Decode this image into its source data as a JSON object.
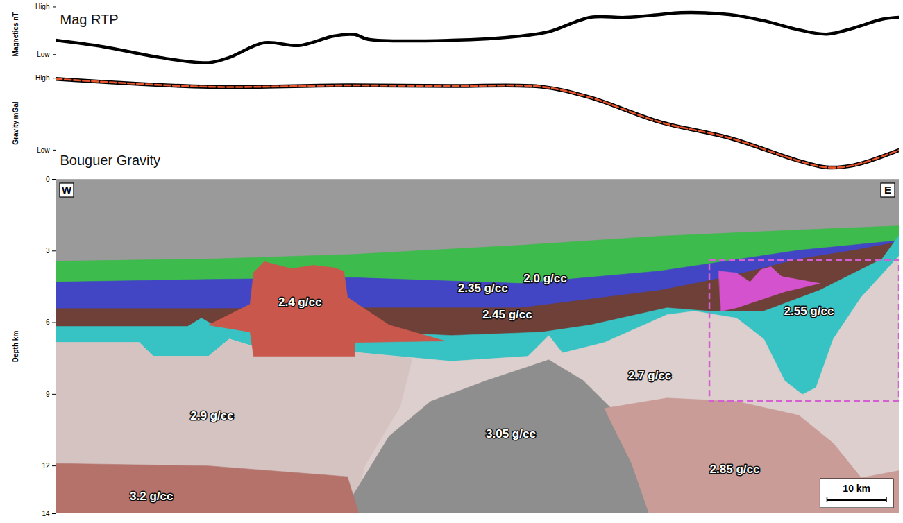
{
  "chart_data": [
    {
      "type": "line",
      "y_label": "Magnetics nT",
      "x": [
        0,
        8.2,
        17.5,
        25.7,
        29.2,
        35.1,
        40.9,
        46.8,
        50.3,
        52.6,
        66.6,
        78.3,
        83.0,
        90.0,
        95.9,
        101.7,
        105.2,
        113.4,
        119.2,
        125.1,
        129.8,
        134.4,
        139.1,
        142
      ],
      "series": [
        {
          "name": "Mag RTP",
          "color": "#000000",
          "line_style": "solid",
          "values": [
            0.3,
            0.16,
            -0.06,
            -0.17,
            -0.06,
            0.25,
            0.19,
            0.39,
            0.42,
            0.32,
            0.3,
            0.39,
            0.48,
            0.78,
            0.78,
            0.84,
            0.88,
            0.84,
            0.71,
            0.52,
            0.43,
            0.56,
            0.74,
            0.78
          ]
        }
      ],
      "xlim": [
        0,
        142
      ],
      "ylim": [
        -0.2,
        1.05
      ],
      "yticks": [
        {
          "value": 0,
          "label": "Low"
        },
        {
          "value": 1,
          "label": "High"
        }
      ],
      "tick_labels": "y"
    },
    {
      "type": "line",
      "y_label": "Gravity mGal",
      "x": [
        0,
        25.7,
        49.1,
        66.6,
        81.8,
        90.0,
        101.7,
        113.4,
        125.1,
        129.8,
        134.4,
        142
      ],
      "series": [
        {
          "name": "Bouguer Gravity",
          "color": "#e8552c",
          "line_style": "dashed",
          "values": [
            0.99,
            0.88,
            0.9,
            0.89,
            0.88,
            0.73,
            0.39,
            0.17,
            -0.15,
            -0.24,
            -0.21,
            0.0
          ]
        }
      ],
      "xlim": [
        0,
        142
      ],
      "ylim": [
        -0.3,
        1.05
      ],
      "yticks": [
        {
          "value": 0,
          "label": "Low"
        },
        {
          "value": 1,
          "label": "High"
        }
      ],
      "tick_labels": "y"
    },
    {
      "type": "section",
      "y_label": "Depth km",
      "xlim": [
        0,
        142
      ],
      "ylim": [
        0,
        14
      ],
      "yticks": [
        0,
        3,
        6,
        9,
        12,
        14
      ],
      "tick_labels": "y",
      "corner_labels": {
        "west": "W",
        "east": "E"
      },
      "scale_bar": {
        "length": 10,
        "label": "10 km"
      },
      "highlight": {
        "x": [
          110.1,
          142
        ],
        "y": [
          3.4,
          9.3
        ],
        "color": "#d35fd3"
      },
      "layers": [
        {
          "color": "#9a9a9a",
          "top": [
            [
              0,
              0
            ],
            [
              142,
              0
            ]
          ]
        },
        {
          "label": "2.0 g/cc",
          "label_at": [
            82.4,
            4.16
          ],
          "color": "#3dbb4c",
          "top": [
            [
              0,
              3.43
            ],
            [
              25.7,
              3.34
            ],
            [
              50.3,
              3.14
            ],
            [
              78.3,
              2.76
            ],
            [
              101.7,
              2.38
            ],
            [
              125.1,
              2.12
            ],
            [
              142,
              1.95
            ]
          ]
        },
        {
          "label": "2.35 g/cc",
          "label_at": [
            71.9,
            4.56
          ],
          "color": "#4346c4",
          "top": [
            [
              0,
              4.3
            ],
            [
              25.7,
              4.19
            ],
            [
              50.3,
              4.12
            ],
            [
              78.3,
              4.36
            ],
            [
              101.7,
              3.84
            ],
            [
              125.1,
              2.97
            ],
            [
              142,
              2.56
            ]
          ]
        },
        {
          "label": "2.45 g/cc",
          "label_at": [
            76.0,
            5.67
          ],
          "color": "#6f4038",
          "top": [
            [
              0,
              5.41
            ],
            [
              25.7,
              5.41
            ],
            [
              50.3,
              5.38
            ],
            [
              78.3,
              5.38
            ],
            [
              101.7,
              4.65
            ],
            [
              113.4,
              4.07
            ],
            [
              125.1,
              3.34
            ],
            [
              134.4,
              2.97
            ],
            [
              142,
              2.62
            ]
          ]
        },
        {
          "label": "2.55 g/cc",
          "label_at": [
            126.8,
            5.52
          ],
          "color": "#37c3c4",
          "top": [
            [
              0,
              6.16
            ],
            [
              22.2,
              6.16
            ],
            [
              24.5,
              5.81
            ],
            [
              26.9,
              6.16
            ],
            [
              49.1,
              6.34
            ],
            [
              66.6,
              6.54
            ],
            [
              81.8,
              6.4
            ],
            [
              90.0,
              6.1
            ],
            [
              102.9,
              5.38
            ],
            [
              109.9,
              5.52
            ],
            [
              119.2,
              5.52
            ],
            [
              128.6,
              4.65
            ],
            [
              134.4,
              3.92
            ],
            [
              139.1,
              3.34
            ],
            [
              142,
              2.33
            ]
          ]
        },
        {
          "label": "2.7 g/cc",
          "label_at": [
            100.0,
            8.23
          ],
          "color": "#dccfcd",
          "top": [
            [
              0,
              6.83
            ],
            [
              14.0,
              6.83
            ],
            [
              16.4,
              7.41
            ],
            [
              25.7,
              7.41
            ],
            [
              29.2,
              6.69
            ],
            [
              33.3,
              7.0
            ],
            [
              51.4,
              7.27
            ],
            [
              66.6,
              7.62
            ],
            [
              79.5,
              7.41
            ],
            [
              83.0,
              6.54
            ],
            [
              85.3,
              7.27
            ],
            [
              92.4,
              6.83
            ],
            [
              102.9,
              5.67
            ],
            [
              107.5,
              5.52
            ],
            [
              114.6,
              5.81
            ],
            [
              119.2,
              6.69
            ],
            [
              122.7,
              8.43
            ],
            [
              125.7,
              9.01
            ],
            [
              128.0,
              8.72
            ],
            [
              130.9,
              6.69
            ],
            [
              135.6,
              4.94
            ],
            [
              142,
              3.2
            ]
          ]
        },
        {
          "label": "2.9 g/cc",
          "label_at": [
            26.3,
            9.91
          ],
          "color": "#d4c3c1",
          "outline": [
            [
              0,
              6.83
            ],
            [
              14.0,
              6.83
            ],
            [
              16.4,
              7.41
            ],
            [
              25.7,
              7.41
            ],
            [
              29.2,
              6.69
            ],
            [
              33.3,
              7.0
            ],
            [
              51.4,
              7.27
            ],
            [
              60.0,
              7.5
            ],
            [
              58.0,
              9.5
            ],
            [
              52.0,
              12.0
            ],
            [
              50.0,
              14
            ],
            [
              0,
              14
            ]
          ]
        },
        {
          "label": "3.05 g/cc",
          "label_at": [
            76.6,
            10.67
          ],
          "color": "#8e8e8e",
          "outline": [
            [
              49.7,
              13.37
            ],
            [
              56.1,
              10.76
            ],
            [
              63.1,
              9.3
            ],
            [
              72.5,
              8.43
            ],
            [
              83.0,
              7.56
            ],
            [
              88.8,
              8.43
            ],
            [
              93.5,
              9.59
            ],
            [
              97.0,
              11.92
            ],
            [
              99.9,
              14
            ],
            [
              49.0,
              14
            ]
          ]
        },
        {
          "label": "2.85 g/cc",
          "label_at": [
            114.3,
            12.15
          ],
          "color": "#c99c98",
          "outline": [
            [
              92.4,
              9.59
            ],
            [
              102.9,
              9.16
            ],
            [
              114.6,
              9.3
            ],
            [
              125.1,
              9.88
            ],
            [
              130.9,
              11.05
            ],
            [
              135.6,
              12.5
            ],
            [
              142,
              12.2
            ],
            [
              142,
              14
            ],
            [
              99.9,
              14
            ],
            [
              97.0,
              11.92
            ],
            [
              93.5,
              10.17
            ]
          ]
        },
        {
          "label": "3.2 g/cc",
          "label_at": [
            16.1,
            13.28
          ],
          "color": "#b4726b",
          "outline": [
            [
              0,
              11.9
            ],
            [
              25.7,
              12.0
            ],
            [
              49.1,
              12.45
            ],
            [
              51.0,
              14
            ],
            [
              0,
              14
            ]
          ]
        },
        {
          "label": "2.4 g/cc",
          "label_at": [
            41.1,
            5.15
          ],
          "color": "#c9574c",
          "outline": [
            [
              25.7,
              6.1
            ],
            [
              32.7,
              5.23
            ],
            [
              33.3,
              3.9
            ],
            [
              35.1,
              3.45
            ],
            [
              39.7,
              3.75
            ],
            [
              43.3,
              3.6
            ],
            [
              46.8,
              3.7
            ],
            [
              48.5,
              3.85
            ],
            [
              49.1,
              4.94
            ],
            [
              56.1,
              6.1
            ],
            [
              65.5,
              6.77
            ],
            [
              50.3,
              6.83
            ],
            [
              50.3,
              7.41
            ],
            [
              33.3,
              7.41
            ],
            [
              32.7,
              6.4
            ]
          ]
        },
        {
          "color": "#d552cf",
          "outline": [
            [
              111.6,
              3.84
            ],
            [
              114.6,
              3.92
            ],
            [
              116.9,
              4.3
            ],
            [
              118.7,
              3.78
            ],
            [
              120.4,
              3.66
            ],
            [
              122.2,
              4.07
            ],
            [
              128.6,
              4.36
            ],
            [
              122.7,
              4.71
            ],
            [
              114.6,
              5.38
            ],
            [
              112.0,
              5.52
            ]
          ]
        }
      ]
    }
  ]
}
